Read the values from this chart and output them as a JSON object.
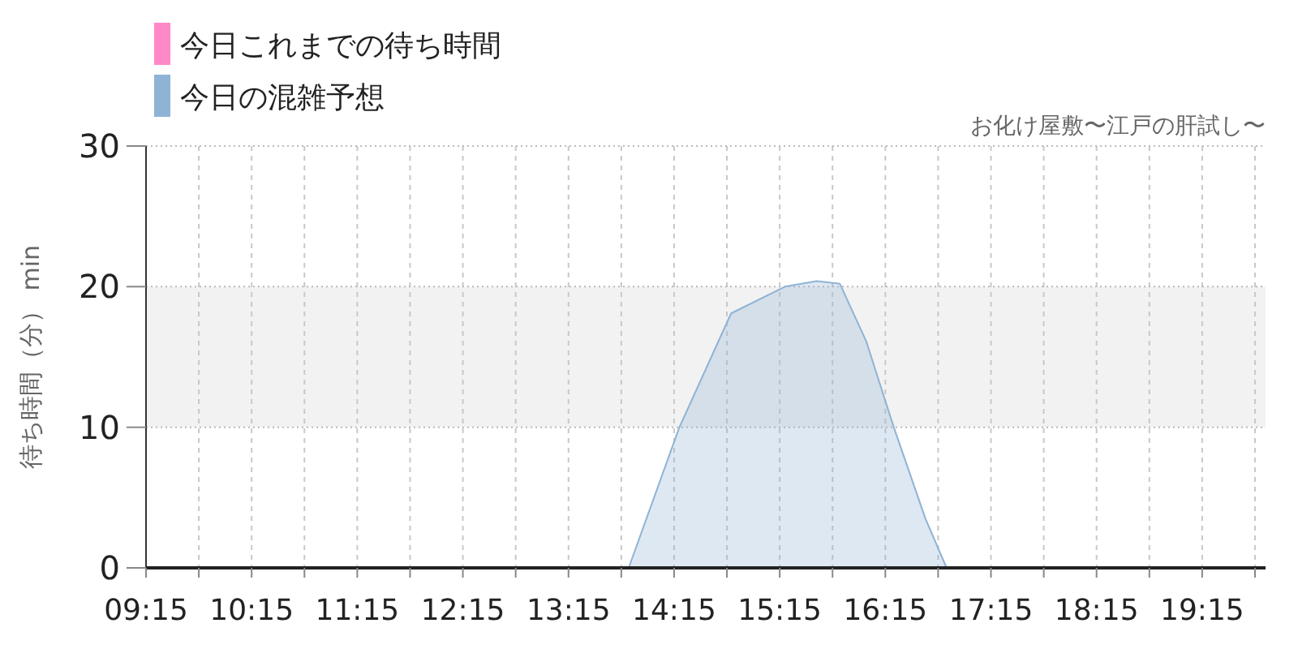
{
  "chart_data": {
    "type": "area",
    "subtitle": "お化け屋敷〜江戸の肝試し〜",
    "ylabel": "待ち時間（分） min",
    "xlim": [
      9.25,
      19.85
    ],
    "ylim": [
      0,
      30
    ],
    "yticks": [
      0,
      10,
      20,
      30
    ],
    "xticks": [
      {
        "value": 9.25,
        "label": "09:15"
      },
      {
        "value": 9.75,
        "label": null
      },
      {
        "value": 10.25,
        "label": "10:15"
      },
      {
        "value": 10.75,
        "label": null
      },
      {
        "value": 11.25,
        "label": "11:15"
      },
      {
        "value": 11.75,
        "label": null
      },
      {
        "value": 12.25,
        "label": "12:15"
      },
      {
        "value": 12.75,
        "label": null
      },
      {
        "value": 13.25,
        "label": "13:15"
      },
      {
        "value": 13.75,
        "label": null
      },
      {
        "value": 14.25,
        "label": "14:15"
      },
      {
        "value": 14.75,
        "label": null
      },
      {
        "value": 15.25,
        "label": "15:15"
      },
      {
        "value": 15.75,
        "label": null
      },
      {
        "value": 16.25,
        "label": "16:15"
      },
      {
        "value": 16.75,
        "label": null
      },
      {
        "value": 17.25,
        "label": "17:15"
      },
      {
        "value": 17.75,
        "label": null
      },
      {
        "value": 18.25,
        "label": "18:15"
      },
      {
        "value": 18.75,
        "label": null
      },
      {
        "value": 19.25,
        "label": "19:15"
      },
      {
        "value": 19.75,
        "label": null
      }
    ],
    "grid": true,
    "legend": "top left",
    "bands": [
      {
        "axis": "y",
        "from": 10,
        "to": 20,
        "color": "#f2f2f2"
      }
    ],
    "series": [
      {
        "name": "今日これまでの待ち時間",
        "color": "#ff88c8"
      },
      {
        "name": "今日の混雑予想",
        "color": "#8fb3d4",
        "x": [
          9.25,
          13.25,
          13.76,
          13.82,
          14.3,
          14.79,
          15.3,
          15.6,
          15.82,
          16.07,
          16.33,
          16.63,
          16.83,
          17.3,
          19.75
        ],
        "values": [
          0,
          0,
          0,
          0,
          10,
          18.1,
          20,
          20.4,
          20.2,
          16.1,
          10,
          3.5,
          0,
          0,
          0
        ]
      }
    ]
  }
}
